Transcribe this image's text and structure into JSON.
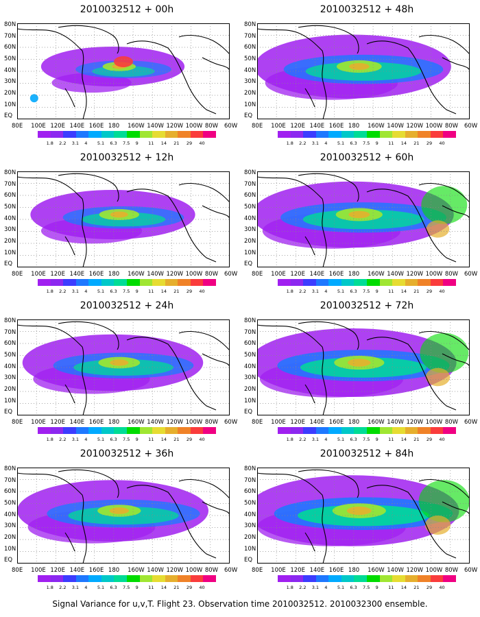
{
  "caption": "Signal Variance for u,v,T. Flight 23. Observation time 2010032512. 2010032300 ensemble.",
  "latitude_labels": [
    "80N",
    "70N",
    "60N",
    "50N",
    "40N",
    "30N",
    "20N",
    "10N",
    "EQ"
  ],
  "longitude_labels": [
    "80E",
    "100E",
    "120E",
    "140E",
    "160E",
    "180",
    "160W",
    "140W",
    "120W",
    "100W",
    "80W",
    "60W"
  ],
  "colorbar": {
    "levels": [
      "1.8",
      "2.2",
      "3.1",
      "4",
      "5.1",
      "6.3",
      "7.5",
      "9",
      "11",
      "14",
      "21",
      "29",
      "40"
    ],
    "colors": [
      "#a020f0",
      "#8c28f0",
      "#3c3cff",
      "#1e78ff",
      "#00aaff",
      "#00c8c8",
      "#00dc96",
      "#00dc00",
      "#a0e632",
      "#e6dc32",
      "#e6af2d",
      "#f08228",
      "#fa3c3c",
      "#f00082"
    ]
  },
  "panels": [
    {
      "title": "2010032512 + 00h",
      "intensity": 0.35,
      "spread": 0.35
    },
    {
      "title": "2010032512 + 12h",
      "intensity": 0.55,
      "spread": 0.55
    },
    {
      "title": "2010032512 + 24h",
      "intensity": 0.6,
      "spread": 0.7
    },
    {
      "title": "2010032512 + 36h",
      "intensity": 0.65,
      "spread": 0.8
    },
    {
      "title": "2010032512 + 48h",
      "intensity": 0.7,
      "spread": 0.85
    },
    {
      "title": "2010032512 + 60h",
      "intensity": 0.75,
      "spread": 0.9
    },
    {
      "title": "2010032512 + 72h",
      "intensity": 0.85,
      "spread": 0.95
    },
    {
      "title": "2010032512 + 84h",
      "intensity": 0.95,
      "spread": 1.0
    }
  ]
}
